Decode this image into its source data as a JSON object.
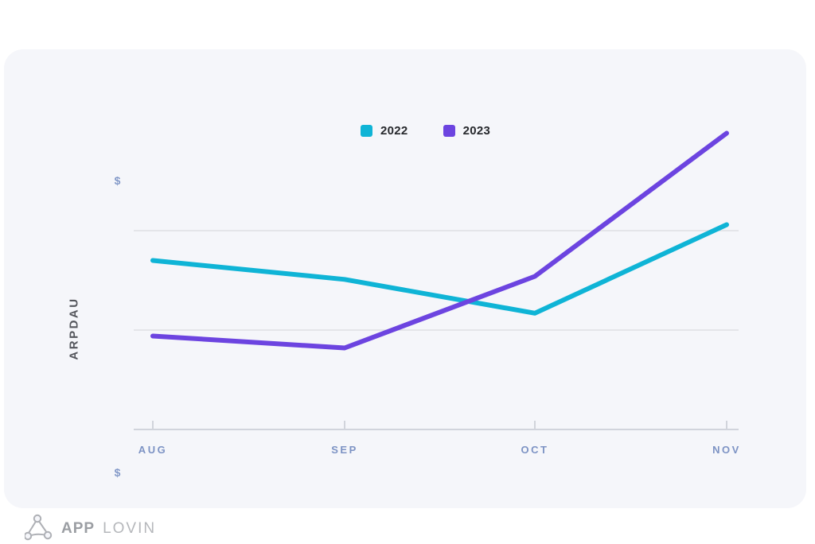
{
  "y_axis": {
    "label": "ARPDAU",
    "top_tick": "$",
    "bottom_tick": "$"
  },
  "brand": {
    "word_bold": "APP",
    "word_light": "LOVIN"
  },
  "colors": {
    "card_background": "#f5f6fa",
    "axis_line": "#c5c9d1",
    "gridline": "#d9dbdf",
    "x_tick_label": "#7d93c4",
    "dollar_label": "#8399c8",
    "y_axis_title": "#54565c",
    "legend_text": "#26282c",
    "series_2022": "#0fb4d6",
    "series_2023": "#6c44e0"
  },
  "chart_data": {
    "type": "line",
    "title": "",
    "xlabel": "",
    "ylabel": "ARPDAU",
    "categories": [
      "AUG",
      "SEP",
      "OCT",
      "NOV"
    ],
    "series": [
      {
        "name": "2022",
        "color": "#0fb4d6",
        "values": [
          1.7,
          1.51,
          1.17,
          2.06
        ]
      },
      {
        "name": "2023",
        "color": "#6c44e0",
        "values": [
          0.94,
          0.82,
          1.54,
          2.98
        ]
      }
    ],
    "ylim": [
      0,
      3
    ],
    "y_tick_labels": [
      "$",
      "$"
    ],
    "gridline_values": [
      1,
      2
    ],
    "grid": "horizontal-only",
    "legend_position": "top-center"
  }
}
